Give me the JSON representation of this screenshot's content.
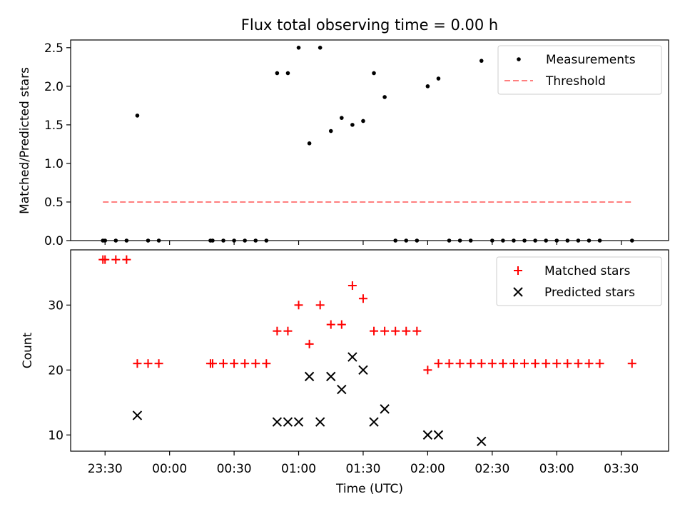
{
  "chart_data": [
    {
      "type": "scatter",
      "title": "Flux total observing time = 0.00 h",
      "xlabel": "",
      "ylabel": "Matched/Predicted stars",
      "ylim": [
        0,
        2.6
      ],
      "xlim": [
        "23:14",
        "03:52"
      ],
      "yticks": [
        "0.0",
        "0.5",
        "1.0",
        "1.5",
        "2.0",
        "2.5"
      ],
      "legend": "upper right",
      "series": [
        {
          "name": "Measurements",
          "marker": "dot",
          "color": "#000000",
          "x": [
            "23:29",
            "23:30",
            "23:35",
            "23:40",
            "23:45",
            "23:50",
            "23:55",
            "00:19",
            "00:20",
            "00:25",
            "00:30",
            "00:35",
            "00:40",
            "00:45",
            "00:50",
            "00:55",
            "01:00",
            "01:05",
            "01:10",
            "01:15",
            "01:20",
            "01:25",
            "01:30",
            "01:35",
            "01:40",
            "01:45",
            "01:50",
            "01:55",
            "02:00",
            "02:05",
            "02:10",
            "02:15",
            "02:20",
            "02:25",
            "02:30",
            "02:35",
            "02:40",
            "02:45",
            "02:50",
            "02:55",
            "03:00",
            "03:05",
            "03:10",
            "03:15",
            "03:20",
            "03:35"
          ],
          "y": [
            0,
            0,
            0,
            0,
            1.62,
            0,
            0,
            0,
            0,
            0,
            0,
            0,
            0,
            0,
            2.17,
            2.17,
            2.5,
            1.26,
            2.5,
            1.42,
            1.59,
            1.5,
            1.55,
            2.17,
            1.86,
            0,
            0,
            0,
            2.0,
            2.1,
            0,
            0,
            0,
            2.33,
            0,
            0,
            0,
            0,
            0,
            0,
            0,
            0,
            0,
            0,
            0,
            0
          ]
        },
        {
          "name": "Threshold",
          "style": "dashed",
          "color": "#ff7f7f",
          "x": [
            "23:29",
            "03:35"
          ],
          "y": [
            0.5,
            0.5
          ]
        }
      ]
    },
    {
      "type": "scatter",
      "title": "",
      "xlabel": "Time (UTC)",
      "ylabel": "Count",
      "ylim": [
        7.5,
        38.5
      ],
      "xlim": [
        "23:14",
        "03:52"
      ],
      "yticks": [
        "10",
        "20",
        "30"
      ],
      "xticks": [
        "23:30",
        "00:00",
        "00:30",
        "01:00",
        "01:30",
        "02:00",
        "02:30",
        "03:00",
        "03:30"
      ],
      "legend": "upper right",
      "series": [
        {
          "name": "Matched stars",
          "marker": "plus",
          "color": "#ff0000",
          "x": [
            "23:29",
            "23:30",
            "23:35",
            "23:40",
            "23:45",
            "23:50",
            "23:55",
            "00:19",
            "00:20",
            "00:25",
            "00:30",
            "00:35",
            "00:40",
            "00:45",
            "00:50",
            "00:55",
            "01:00",
            "01:05",
            "01:10",
            "01:15",
            "01:20",
            "01:25",
            "01:30",
            "01:35",
            "01:40",
            "01:45",
            "01:50",
            "01:55",
            "02:00",
            "02:05",
            "02:10",
            "02:15",
            "02:20",
            "02:25",
            "02:30",
            "02:35",
            "02:40",
            "02:45",
            "02:50",
            "02:55",
            "03:00",
            "03:05",
            "03:10",
            "03:15",
            "03:20",
            "03:35"
          ],
          "y": [
            37,
            37,
            37,
            37,
            21,
            21,
            21,
            21,
            21,
            21,
            21,
            21,
            21,
            21,
            26,
            26,
            30,
            24,
            30,
            27,
            27,
            33,
            31,
            26,
            26,
            26,
            26,
            26,
            20,
            21,
            21,
            21,
            21,
            21,
            21,
            21,
            21,
            21,
            21,
            21,
            21,
            21,
            21,
            21,
            21,
            21
          ]
        },
        {
          "name": "Predicted stars",
          "marker": "x",
          "color": "#000000",
          "x": [
            "23:45",
            "00:50",
            "00:55",
            "01:00",
            "01:05",
            "01:10",
            "01:15",
            "01:20",
            "01:25",
            "01:30",
            "01:35",
            "01:40",
            "02:00",
            "02:05",
            "02:25"
          ],
          "y": [
            13,
            12,
            12,
            12,
            19,
            12,
            19,
            17,
            22,
            20,
            12,
            14,
            10,
            10,
            9
          ]
        }
      ]
    }
  ]
}
